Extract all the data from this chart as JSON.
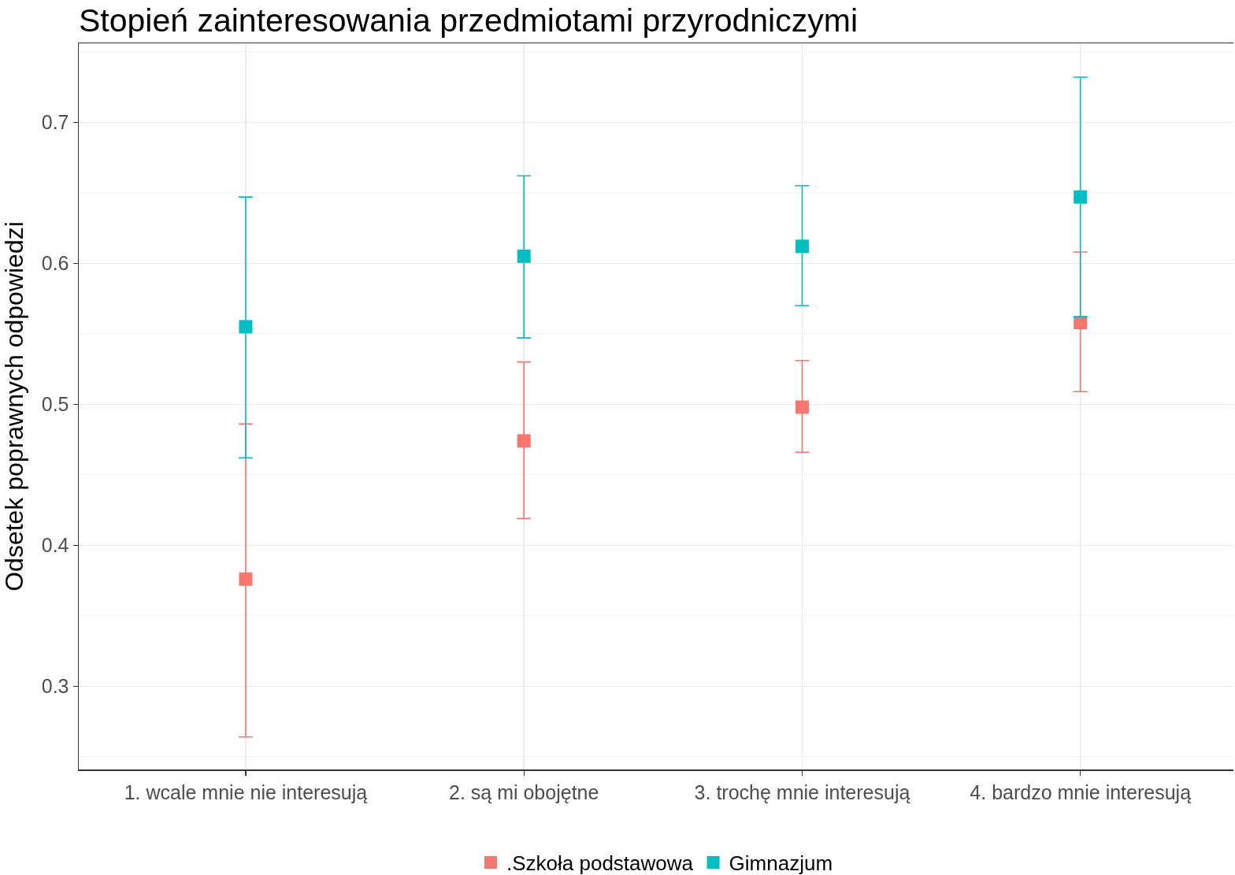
{
  "chart_data": {
    "type": "scatter",
    "title": "Stopień zainteresowania przedmiotami przyrodniczymi",
    "ylabel": "Odsetek poprawnych odpowiedzi",
    "categories": [
      "1. wcale mnie nie interesują",
      "2. są mi obojętne",
      "3. trochę mnie interesują",
      "4. bardzo mnie interesują"
    ],
    "series": [
      {
        "name": ".Szkoła podstawowa",
        "color": "#f8766d",
        "values": [
          0.376,
          0.474,
          0.498,
          0.558
        ],
        "errors": [
          [
            0.264,
            0.486
          ],
          [
            0.419,
            0.53
          ],
          [
            0.466,
            0.531
          ],
          [
            0.509,
            0.608
          ]
        ]
      },
      {
        "name": "Gimnazjum",
        "color": "#00bfc4",
        "values": [
          0.555,
          0.605,
          0.612,
          0.647
        ],
        "errors": [
          [
            0.462,
            0.647
          ],
          [
            0.547,
            0.662
          ],
          [
            0.57,
            0.655
          ],
          [
            0.562,
            0.732
          ]
        ]
      }
    ],
    "ylim": [
      0.241,
      0.756
    ],
    "yticks": [
      {
        "value": 0.25,
        "label": null
      },
      0.3,
      {
        "value": 0.35,
        "label": null
      },
      0.4,
      {
        "value": 0.45,
        "label": null
      },
      0.5,
      {
        "value": 0.55,
        "label": null
      },
      0.6,
      {
        "value": 0.65,
        "label": null
      },
      0.7,
      {
        "value": 0.75,
        "label": null
      }
    ],
    "grid": true,
    "legend": "bottom",
    "marker": "square"
  }
}
